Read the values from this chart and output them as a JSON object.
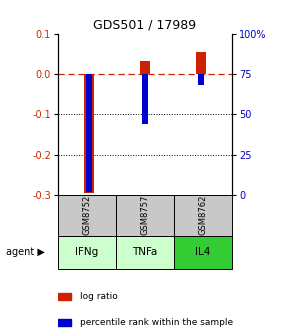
{
  "title": "GDS501 / 17989",
  "samples": [
    "GSM8752",
    "GSM8757",
    "GSM8762"
  ],
  "agents": [
    "IFNg",
    "TNFa",
    "IL4"
  ],
  "log_ratios": [
    -0.295,
    0.032,
    0.055
  ],
  "percentile_ranks": [
    2.0,
    44.0,
    68.0
  ],
  "ylim_left": [
    -0.3,
    0.1
  ],
  "ylim_right": [
    0,
    100
  ],
  "yticks_left": [
    0.1,
    0.0,
    -0.1,
    -0.2,
    -0.3
  ],
  "yticks_right": [
    100,
    75,
    50,
    25,
    0
  ],
  "red_color": "#cc2200",
  "blue_color": "#0000cc",
  "gray_bg": "#c8c8c8",
  "agent_colors": [
    "#ccffcc",
    "#ccffcc",
    "#33cc33"
  ]
}
